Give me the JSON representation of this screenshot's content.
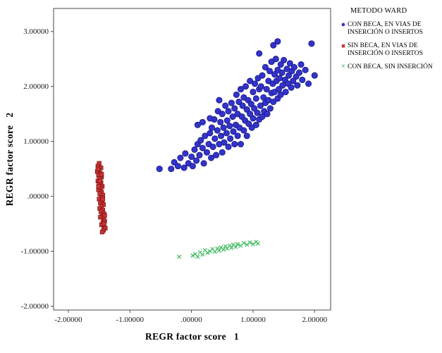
{
  "chart_data": {
    "type": "scatter",
    "title": "",
    "xlabel": "REGR factor score   1",
    "ylabel": "REGR factor score   2",
    "xlim": [
      -2.24,
      2.26
    ],
    "ylim": [
      -2.07,
      3.42
    ],
    "grid": false,
    "frame_color": "#4a4a4a",
    "legend_title": "METODO WARD",
    "legend_position": "right-top",
    "xticks": [
      {
        "v": -2,
        "label": "-2.00000"
      },
      {
        "v": -1,
        "label": "-1.00000"
      },
      {
        "v": 0,
        "label": ".00000"
      },
      {
        "v": 1,
        "label": "1.00000"
      },
      {
        "v": 2,
        "label": "2.00000"
      }
    ],
    "yticks": [
      {
        "v": 3,
        "label": "3.00000"
      },
      {
        "v": 2,
        "label": "2.00000"
      },
      {
        "v": 1,
        "label": "1.00000"
      },
      {
        "v": 0,
        "label": ".00000"
      },
      {
        "v": -1,
        "label": "-1.00000"
      },
      {
        "v": -2,
        "label": "-2.00000"
      }
    ],
    "series": [
      {
        "id": "con-beca-en-vias",
        "name": "CON BECA, EN VIAS DE INSERCIÓN O INSERTOS",
        "marker": "circle",
        "marker_glyph": "●",
        "color": "#3333cc",
        "edge": "#1b1b86",
        "points": [
          [
            -0.52,
            0.5
          ],
          [
            -0.33,
            0.5
          ],
          [
            -0.28,
            0.62
          ],
          [
            -0.22,
            0.55
          ],
          [
            -0.18,
            0.7
          ],
          [
            -0.12,
            0.52
          ],
          [
            -0.1,
            0.78
          ],
          [
            -0.05,
            0.6
          ],
          [
            0.0,
            0.72
          ],
          [
            0.02,
            0.55
          ],
          [
            0.05,
            0.85
          ],
          [
            0.08,
            0.65
          ],
          [
            0.1,
            0.95
          ],
          [
            0.13,
            0.75
          ],
          [
            0.15,
            1.02
          ],
          [
            0.18,
            0.88
          ],
          [
            0.2,
            0.6
          ],
          [
            0.22,
            1.1
          ],
          [
            0.25,
            0.8
          ],
          [
            0.28,
            0.95
          ],
          [
            0.3,
            1.15
          ],
          [
            0.1,
            1.3
          ],
          [
            0.18,
            1.35
          ],
          [
            0.32,
            0.7
          ],
          [
            0.33,
            1.25
          ],
          [
            0.35,
            0.9
          ],
          [
            0.37,
            1.4
          ],
          [
            0.38,
            1.05
          ],
          [
            0.4,
            0.75
          ],
          [
            0.42,
            1.2
          ],
          [
            0.43,
            1.55
          ],
          [
            0.45,
            0.95
          ],
          [
            0.47,
            1.35
          ],
          [
            0.48,
            1.1
          ],
          [
            0.5,
            0.8
          ],
          [
            0.5,
            1.5
          ],
          [
            0.52,
            1.25
          ],
          [
            0.53,
            0.98
          ],
          [
            0.55,
            1.65
          ],
          [
            0.57,
            1.15
          ],
          [
            0.58,
            1.38
          ],
          [
            0.6,
            0.9
          ],
          [
            0.6,
            1.55
          ],
          [
            0.62,
            1.28
          ],
          [
            0.63,
            1.05
          ],
          [
            0.65,
            1.7
          ],
          [
            0.67,
            1.45
          ],
          [
            0.68,
            1.18
          ],
          [
            0.7,
            0.95
          ],
          [
            0.7,
            1.6
          ],
          [
            0.72,
            1.3
          ],
          [
            0.73,
            1.85
          ],
          [
            0.75,
            1.1
          ],
          [
            0.75,
            1.5
          ],
          [
            0.77,
            1.72
          ],
          [
            0.78,
            1.25
          ],
          [
            0.8,
            0.95
          ],
          [
            0.8,
            1.95
          ],
          [
            0.82,
            1.45
          ],
          [
            0.83,
            1.65
          ],
          [
            0.85,
            1.2
          ],
          [
            0.85,
            1.8
          ],
          [
            0.87,
            1.38
          ],
          [
            0.88,
            2.0
          ],
          [
            0.9,
            1.1
          ],
          [
            0.9,
            1.58
          ],
          [
            0.92,
            1.75
          ],
          [
            0.93,
            1.32
          ],
          [
            0.95,
            2.1
          ],
          [
            0.95,
            1.5
          ],
          [
            0.97,
            1.68
          ],
          [
            0.98,
            1.25
          ],
          [
            1.0,
            1.9
          ],
          [
            1.0,
            1.42
          ],
          [
            1.02,
            1.6
          ],
          [
            1.03,
            2.05
          ],
          [
            1.05,
            1.3
          ],
          [
            1.05,
            1.78
          ],
          [
            1.07,
            1.52
          ],
          [
            1.08,
            2.15
          ],
          [
            1.1,
            1.4
          ],
          [
            1.1,
            1.95
          ],
          [
            1.12,
            1.65
          ],
          [
            1.13,
            2.0
          ],
          [
            1.15,
            1.45
          ],
          [
            1.15,
            2.2
          ],
          [
            1.17,
            1.8
          ],
          [
            1.18,
            1.55
          ],
          [
            1.2,
            2.35
          ],
          [
            1.2,
            1.7
          ],
          [
            1.22,
            1.95
          ],
          [
            1.23,
            1.5
          ],
          [
            1.25,
            2.1
          ],
          [
            1.25,
            1.75
          ],
          [
            1.27,
            2.28
          ],
          [
            1.28,
            1.6
          ],
          [
            1.3,
            1.88
          ],
          [
            1.3,
            2.45
          ],
          [
            1.32,
            2.05
          ],
          [
            1.33,
            1.72
          ],
          [
            1.35,
            2.22
          ],
          [
            1.35,
            1.9
          ],
          [
            1.37,
            2.5
          ],
          [
            1.38,
            2.1
          ],
          [
            1.4,
            1.78
          ],
          [
            1.4,
            2.3
          ],
          [
            1.42,
            1.95
          ],
          [
            1.43,
            2.15
          ],
          [
            1.45,
            2.4
          ],
          [
            1.45,
            1.85
          ],
          [
            1.47,
            2.25
          ],
          [
            1.48,
            2.02
          ],
          [
            1.5,
            2.48
          ],
          [
            1.52,
            2.12
          ],
          [
            1.53,
            1.9
          ],
          [
            1.55,
            2.32
          ],
          [
            1.57,
            2.05
          ],
          [
            1.58,
            2.2
          ],
          [
            1.6,
            2.42
          ],
          [
            1.62,
            1.98
          ],
          [
            1.63,
            2.28
          ],
          [
            1.65,
            2.1
          ],
          [
            1.67,
            2.35
          ],
          [
            1.7,
            2.18
          ],
          [
            1.72,
            2.02
          ],
          [
            1.75,
            2.25
          ],
          [
            1.78,
            2.4
          ],
          [
            1.8,
            2.12
          ],
          [
            1.85,
            2.3
          ],
          [
            1.9,
            2.05
          ],
          [
            1.95,
            2.78
          ],
          [
            2.0,
            2.2
          ],
          [
            1.33,
            2.75
          ],
          [
            1.4,
            2.82
          ],
          [
            1.1,
            2.6
          ],
          [
            0.45,
            1.75
          ],
          [
            0.3,
            1.42
          ]
        ]
      },
      {
        "id": "sin-beca-en-vias",
        "name": "SIN BECA, EN VIAS DE INSERCIÓN O INSERTOS",
        "marker": "square",
        "marker_glyph": "■",
        "color": "#cc3333",
        "edge": "#7d1616",
        "points": [
          [
            -1.5,
            0.6
          ],
          [
            -1.52,
            0.55
          ],
          [
            -1.47,
            0.52
          ],
          [
            -1.5,
            0.48
          ],
          [
            -1.53,
            0.45
          ],
          [
            -1.48,
            0.42
          ],
          [
            -1.51,
            0.38
          ],
          [
            -1.46,
            0.35
          ],
          [
            -1.49,
            0.32
          ],
          [
            -1.52,
            0.28
          ],
          [
            -1.47,
            0.25
          ],
          [
            -1.5,
            0.22
          ],
          [
            -1.45,
            0.18
          ],
          [
            -1.48,
            0.15
          ],
          [
            -1.51,
            0.12
          ],
          [
            -1.46,
            0.08
          ],
          [
            -1.49,
            0.05
          ],
          [
            -1.44,
            0.02
          ],
          [
            -1.47,
            -0.02
          ],
          [
            -1.5,
            -0.05
          ],
          [
            -1.45,
            -0.08
          ],
          [
            -1.48,
            -0.12
          ],
          [
            -1.43,
            -0.15
          ],
          [
            -1.46,
            -0.18
          ],
          [
            -1.49,
            -0.22
          ],
          [
            -1.44,
            -0.25
          ],
          [
            -1.47,
            -0.28
          ],
          [
            -1.42,
            -0.32
          ],
          [
            -1.45,
            -0.35
          ],
          [
            -1.48,
            -0.38
          ],
          [
            -1.43,
            -0.42
          ],
          [
            -1.41,
            -0.45
          ],
          [
            -1.44,
            -0.48
          ],
          [
            -1.46,
            -0.52
          ],
          [
            -1.42,
            -0.55
          ],
          [
            -1.4,
            -0.58
          ],
          [
            -1.43,
            -0.62
          ],
          [
            -1.45,
            -0.65
          ],
          [
            -1.41,
            -0.35
          ],
          [
            -1.52,
            0.5
          ],
          [
            -1.49,
            0.28
          ],
          [
            -1.44,
            -0.05
          ],
          [
            -1.51,
            0.18
          ],
          [
            -1.42,
            -0.5
          ],
          [
            -1.46,
            0.4
          ]
        ]
      },
      {
        "id": "con-beca-sin-insercion",
        "name": "CON BECA, SIN INSERCIÓN",
        "marker": "x",
        "marker_glyph": "×",
        "color": "#3dbb5e",
        "edge": "#3dbb5e",
        "points": [
          [
            -0.2,
            -1.1
          ],
          [
            0.02,
            -1.08
          ],
          [
            0.06,
            -1.05
          ],
          [
            0.1,
            -1.1
          ],
          [
            0.14,
            -1.02
          ],
          [
            0.18,
            -1.06
          ],
          [
            0.22,
            -0.98
          ],
          [
            0.26,
            -1.03
          ],
          [
            0.3,
            -1.0
          ],
          [
            0.34,
            -0.96
          ],
          [
            0.38,
            -1.01
          ],
          [
            0.42,
            -0.95
          ],
          [
            0.45,
            -0.99
          ],
          [
            0.48,
            -0.93
          ],
          [
            0.52,
            -0.97
          ],
          [
            0.55,
            -0.91
          ],
          [
            0.58,
            -0.95
          ],
          [
            0.62,
            -0.9
          ],
          [
            0.65,
            -0.94
          ],
          [
            0.68,
            -0.88
          ],
          [
            0.72,
            -0.92
          ],
          [
            0.75,
            -0.87
          ],
          [
            0.8,
            -0.9
          ],
          [
            0.85,
            -0.85
          ],
          [
            0.9,
            -0.88
          ],
          [
            0.95,
            -0.84
          ],
          [
            1.0,
            -0.87
          ],
          [
            1.05,
            -0.83
          ],
          [
            1.08,
            -0.86
          ]
        ]
      }
    ]
  }
}
